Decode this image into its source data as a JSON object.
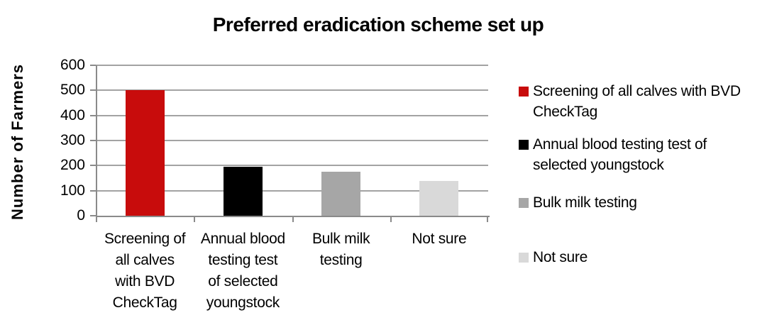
{
  "chart_data": {
    "type": "bar",
    "title": "Preferred eradication scheme set up",
    "xlabel": "",
    "ylabel": "Number of Farmers",
    "ylim": [
      0,
      600
    ],
    "yticks": [
      0,
      100,
      200,
      300,
      400,
      500,
      600
    ],
    "grid": true,
    "legend_position": "right",
    "categories": [
      "Screening of all calves with BVD CheckTag",
      "Annual blood testing test of selected youngstock",
      "Bulk milk testing",
      "Not sure"
    ],
    "category_label_lines": [
      [
        "Screening of",
        "all calves",
        "with BVD",
        "CheckTag"
      ],
      [
        "Annual blood",
        "testing test",
        "of selected",
        "youngstock"
      ],
      [
        "Bulk milk",
        "testing"
      ],
      [
        "Not sure"
      ]
    ],
    "values": [
      500,
      195,
      175,
      140
    ],
    "bar_colors": [
      "#c80c0c",
      "#000000",
      "#a6a6a6",
      "#d9d9d9"
    ],
    "legend": [
      {
        "label": "Screening of all calves with BVD CheckTag",
        "lines": [
          "Screening of all calves with BVD",
          "CheckTag"
        ],
        "color": "#c80c0c"
      },
      {
        "label": "Annual blood testing test of selected youngstock",
        "lines": [
          "Annual blood testing test of",
          "selected youngstock"
        ],
        "color": "#000000"
      },
      {
        "label": "Bulk milk testing",
        "lines": [
          "Bulk milk testing"
        ],
        "color": "#a6a6a6"
      },
      {
        "label": "Not sure",
        "lines": [
          "Not sure"
        ],
        "color": "#d9d9d9"
      }
    ]
  },
  "colors": {
    "background": "#ffffff",
    "gridline": "#a3a3a3",
    "axis": "#8a8a8a",
    "text": "#000000"
  }
}
